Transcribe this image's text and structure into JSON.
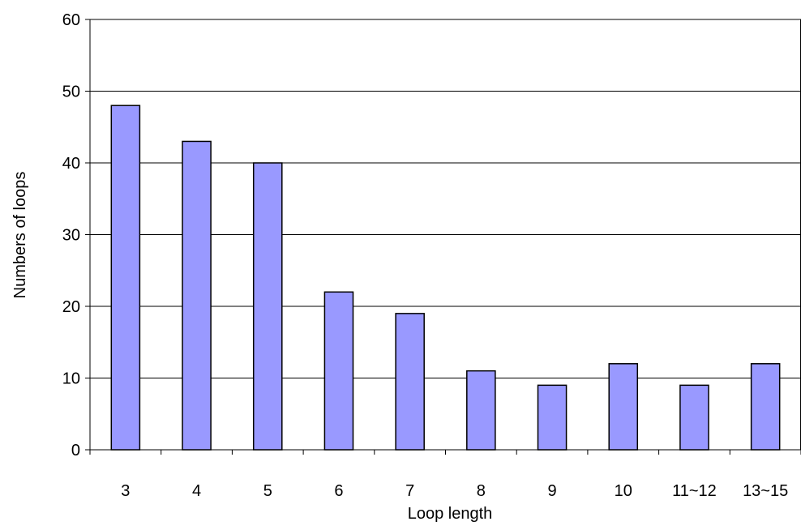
{
  "chart_data": {
    "type": "bar",
    "title": "",
    "xlabel": "Loop length",
    "ylabel": "Numbers of loops",
    "categories": [
      "3",
      "4",
      "5",
      "6",
      "7",
      "8",
      "9",
      "10",
      "11~12",
      "13~15"
    ],
    "values": [
      48,
      43,
      40,
      22,
      19,
      11,
      9,
      12,
      9,
      12
    ],
    "ylim": [
      0,
      60
    ],
    "yticks": [
      "0",
      "10",
      "20",
      "30",
      "40",
      "50",
      "60"
    ],
    "grid": "horizontal",
    "legend": "none"
  },
  "colors": {
    "bar_fill": "#9999ff",
    "bar_stroke": "#000000",
    "grid": "#000000",
    "background": "#ffffff"
  }
}
